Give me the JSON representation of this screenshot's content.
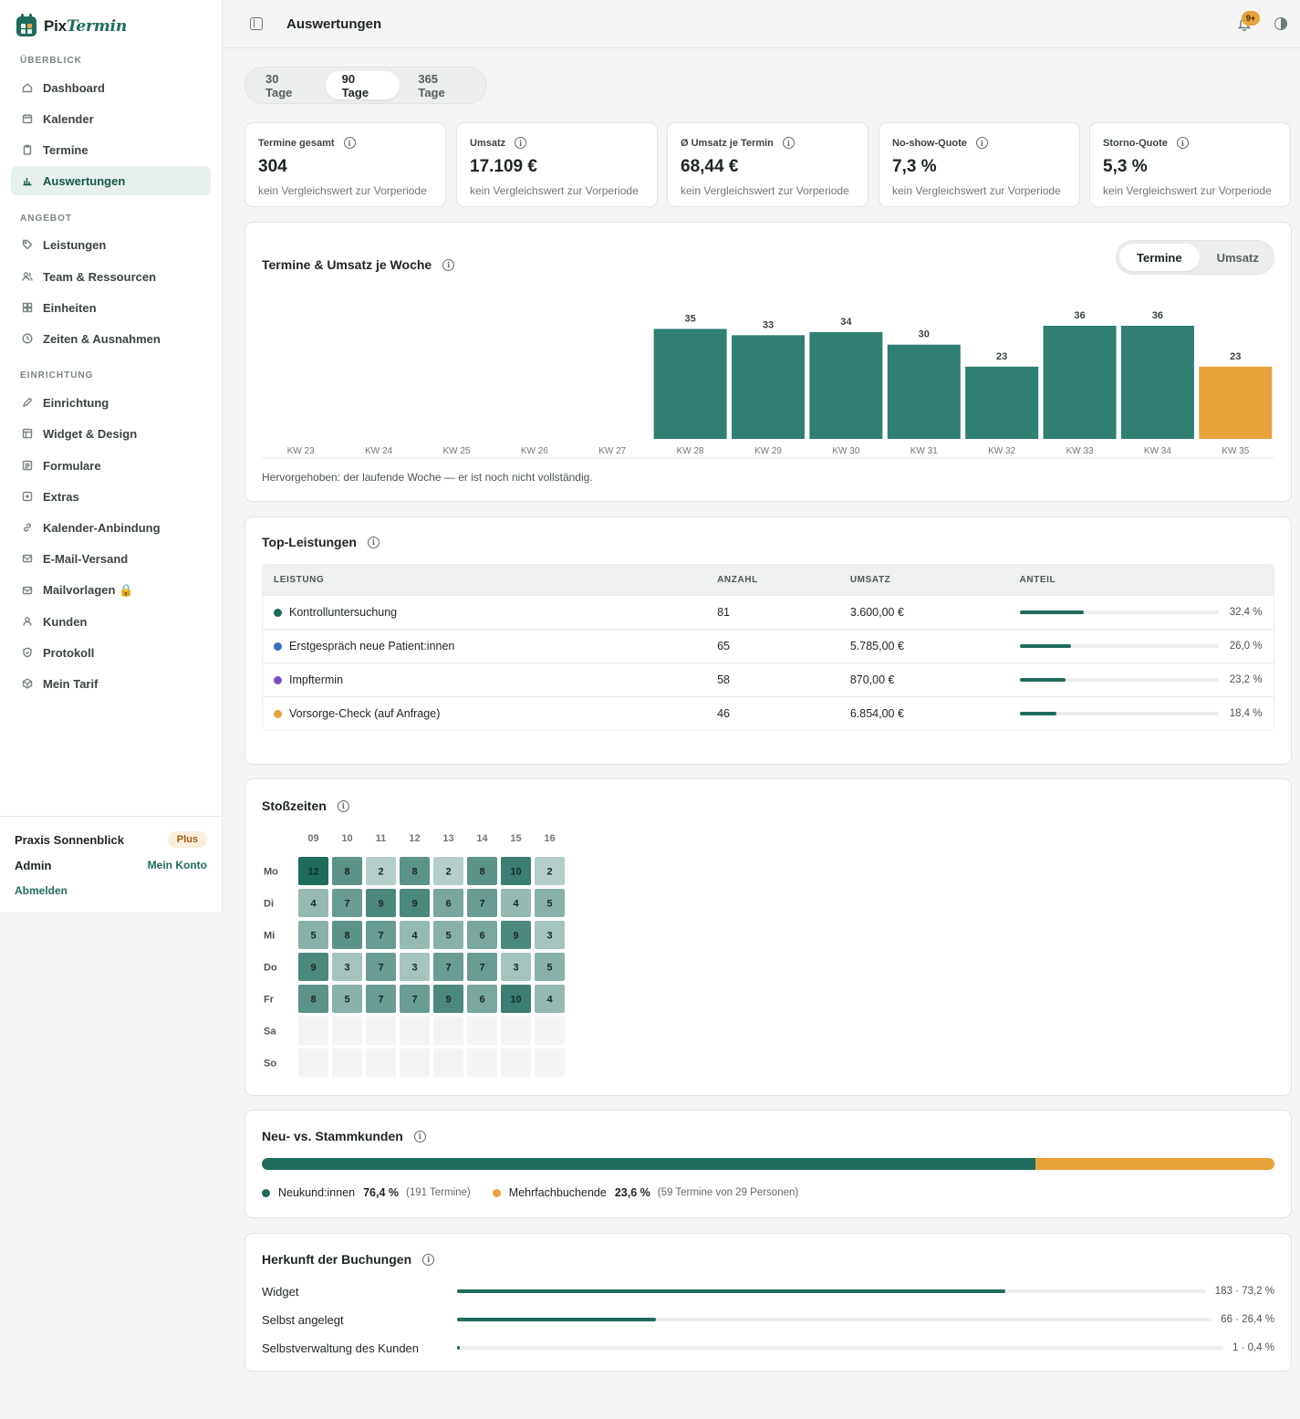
{
  "app": {
    "brand_prefix": "Pix",
    "brand_suffix": "Termin",
    "page_title": "Auswertungen",
    "notifications_badge": "9+"
  },
  "sidebar": {
    "sections": [
      {
        "label": "ÜBERBLICK",
        "items": [
          {
            "label": "Dashboard",
            "icon": "home-icon"
          },
          {
            "label": "Kalender",
            "icon": "calendar-icon"
          },
          {
            "label": "Termine",
            "icon": "clipboard-icon"
          },
          {
            "label": "Auswertungen",
            "icon": "bar-chart-icon",
            "active": true
          }
        ]
      },
      {
        "label": "ANGEBOT",
        "items": [
          {
            "label": "Leistungen",
            "icon": "tag-icon"
          },
          {
            "label": "Team & Ressourcen",
            "icon": "users-icon"
          },
          {
            "label": "Einheiten",
            "icon": "grid-icon"
          },
          {
            "label": "Zeiten & Ausnahmen",
            "icon": "clock-icon"
          }
        ]
      },
      {
        "label": "EINRICHTUNG",
        "items": [
          {
            "label": "Einrichtung",
            "icon": "pencil-icon"
          },
          {
            "label": "Widget & Design",
            "icon": "layout-icon"
          },
          {
            "label": "Formulare",
            "icon": "form-icon"
          },
          {
            "label": "Extras",
            "icon": "plus-square-icon"
          },
          {
            "label": "Kalender-Anbindung",
            "icon": "link-icon"
          },
          {
            "label": "E-Mail-Versand",
            "icon": "mail-icon"
          },
          {
            "label": "Mailvorlagen 🔒",
            "icon": "mail-template-icon"
          },
          {
            "label": "Kunden",
            "icon": "user-icon"
          },
          {
            "label": "Protokoll",
            "icon": "shield-icon"
          },
          {
            "label": "Mein Tarif",
            "icon": "box-icon"
          }
        ]
      }
    ],
    "footer": {
      "practice": "Praxis Sonnenblick",
      "plan": "Plus",
      "role": "Admin",
      "account_link": "Mein Konto",
      "logout": "Abmelden"
    }
  },
  "period": {
    "options": [
      "30 Tage",
      "90 Tage",
      "365 Tage"
    ],
    "selected": "90 Tage"
  },
  "kpis": [
    {
      "label": "Termine gesamt",
      "value": "304",
      "sub": "kein Vergleichswert zur Vorperiode"
    },
    {
      "label": "Umsatz",
      "value": "17.109 €",
      "sub": "kein Vergleichswert zur Vorperiode"
    },
    {
      "label": "Ø Umsatz je Termin",
      "value": "68,44 €",
      "sub": "kein Vergleichswert zur Vorperiode"
    },
    {
      "label": "No-show-Quote",
      "value": "7,3 %",
      "sub": "kein Vergleichswert zur Vorperiode"
    },
    {
      "label": "Storno-Quote",
      "value": "5,3 %",
      "sub": "kein Vergleichswert zur Vorperiode"
    }
  ],
  "weekly": {
    "title": "Termine & Umsatz je Woche",
    "toggle": [
      "Termine",
      "Umsatz"
    ],
    "toggle_selected": "Termine",
    "note": "Hervorgehoben: der laufende Woche — er ist noch nicht vollständig."
  },
  "chart_data": {
    "type": "bar",
    "categories": [
      "KW 23",
      "KW 24",
      "KW 25",
      "KW 26",
      "KW 27",
      "KW 28",
      "KW 29",
      "KW 30",
      "KW 31",
      "KW 32",
      "KW 33",
      "KW 34",
      "KW 35"
    ],
    "values": [
      0,
      0,
      0,
      0,
      0,
      35,
      33,
      34,
      30,
      23,
      36,
      36,
      23
    ],
    "highlighted_category": "KW 35",
    "ylim": [
      0,
      36
    ],
    "grid": false,
    "colors": {
      "bar": "#2f7f72",
      "highlight": "#e8a23c"
    }
  },
  "top_services": {
    "title": "Top-Leistungen",
    "columns": [
      "LEISTUNG",
      "ANZAHL",
      "UMSATZ",
      "ANTEIL"
    ],
    "rows": [
      {
        "name": "Kontrolluntersuchung",
        "count": "81",
        "revenue": "3.600,00 €",
        "share": 32.4,
        "share_label": "32,4 %",
        "color": "#1f6b5c"
      },
      {
        "name": "Erstgespräch neue Patient:innen",
        "count": "65",
        "revenue": "5.785,00 €",
        "share": 26.0,
        "share_label": "26,0 %",
        "color": "#3a6db8"
      },
      {
        "name": "Impftermin",
        "count": "58",
        "revenue": "870,00 €",
        "share": 23.2,
        "share_label": "23,2 %",
        "color": "#7b4fb8"
      },
      {
        "name": "Vorsorge-Check (auf Anfrage)",
        "count": "46",
        "revenue": "6.854,00 €",
        "share": 18.4,
        "share_label": "18,4 %",
        "color": "#e8a23c"
      }
    ]
  },
  "peak_times": {
    "title": "Stoßzeiten",
    "hours": [
      "09",
      "10",
      "11",
      "12",
      "13",
      "14",
      "15",
      "16"
    ],
    "days": [
      "Mo",
      "Di",
      "Mi",
      "Do",
      "Fr",
      "Sa",
      "So"
    ],
    "values": [
      [
        12,
        8,
        2,
        8,
        2,
        8,
        10,
        2
      ],
      [
        4,
        7,
        9,
        9,
        6,
        7,
        4,
        5
      ],
      [
        5,
        8,
        7,
        4,
        5,
        6,
        9,
        3
      ],
      [
        9,
        3,
        7,
        3,
        7,
        7,
        3,
        5
      ],
      [
        8,
        5,
        7,
        7,
        9,
        6,
        10,
        4
      ],
      [
        null,
        null,
        null,
        null,
        null,
        null,
        null,
        null
      ],
      [
        null,
        null,
        null,
        null,
        null,
        null,
        null,
        null
      ]
    ],
    "max": 12,
    "color": "#1f6b5c"
  },
  "new_vs_returning": {
    "title": "Neu- vs. Stammkunden",
    "new_share": 76.4,
    "new_label": "Neukund:innen",
    "new_pct": "76,4 %",
    "new_detail": "(191 Termine)",
    "returning_label": "Mehrfachbuchende",
    "returning_pct": "23,6 %",
    "returning_detail": "(59 Termine von 29 Personen)",
    "colors": {
      "new": "#1f6b5c",
      "returning": "#e8a23c"
    }
  },
  "origin": {
    "title": "Herkunft der Buchungen",
    "rows": [
      {
        "label": "Widget",
        "share": 73.2,
        "value": "183 · 73,2 %"
      },
      {
        "label": "Selbst angelegt",
        "share": 26.4,
        "value": "66 · 26,4 %"
      },
      {
        "label": "Selbstverwaltung des Kunden",
        "share": 0.4,
        "value": "1 · 0,4 %"
      }
    ]
  }
}
